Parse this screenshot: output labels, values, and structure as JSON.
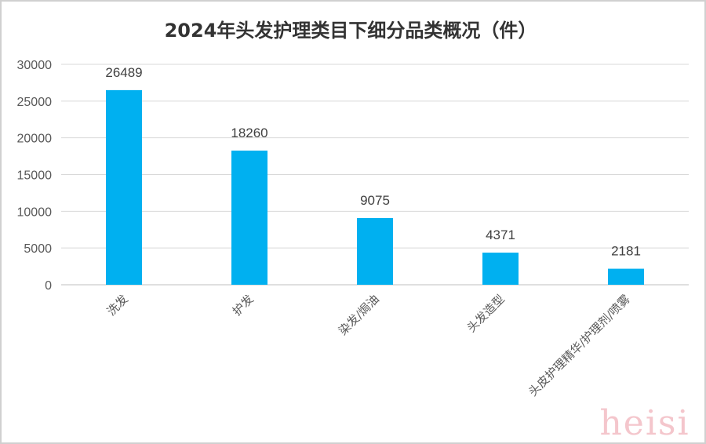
{
  "chart_data": {
    "type": "bar",
    "title": "2024年头发护理类目下细分品类概况（件）",
    "categories": [
      "洗发",
      "护发",
      "染发/焗油",
      "头发造型",
      "头皮护理精华/护理剂/喷雾"
    ],
    "values": [
      26489,
      18260,
      9075,
      4371,
      2181
    ],
    "ylim": [
      0,
      30000
    ],
    "yticks": [
      0,
      5000,
      10000,
      15000,
      20000,
      25000,
      30000
    ],
    "xlabel": "",
    "ylabel": "",
    "grid": true,
    "legend": "none",
    "bar_color": "#00b0f0"
  },
  "watermark": "heisi"
}
